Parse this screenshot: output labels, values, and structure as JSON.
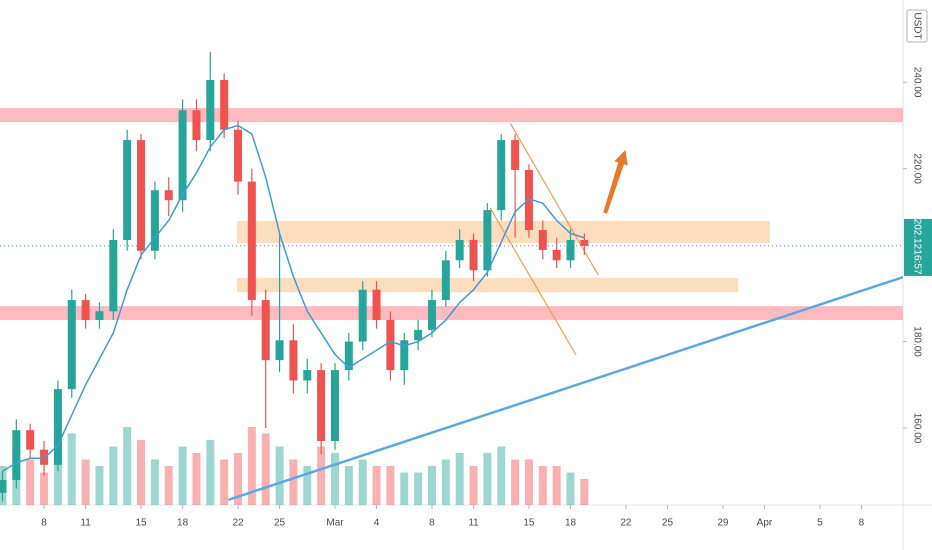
{
  "chart_data": {
    "type": "candlestick",
    "currency": "USDT",
    "last_price": 202.12,
    "time_label": "16:57",
    "up_color": "#26a69a",
    "down_color": "#ef5350",
    "ma_color": "#3d9be0",
    "xlim": [
      3.82,
      69.0
    ],
    "ylim": [
      142.2,
      259.0
    ],
    "vlim": [
      0,
      100
    ],
    "yticks": [
      {
        "value": 160,
        "label": "160.00"
      },
      {
        "value": 180,
        "label": "180.00"
      },
      {
        "value": 220,
        "label": "220.00"
      },
      {
        "value": 240,
        "label": "240.00"
      }
    ],
    "xticks": [
      {
        "value": 7,
        "label": "8"
      },
      {
        "value": 10,
        "label": "11"
      },
      {
        "value": 14,
        "label": "15"
      },
      {
        "value": 17,
        "label": "18"
      },
      {
        "value": 21,
        "label": "22"
      },
      {
        "value": 24,
        "label": "25"
      },
      {
        "value": 28,
        "label": "Mar"
      },
      {
        "value": 31,
        "label": "4"
      },
      {
        "value": 35,
        "label": "8"
      },
      {
        "value": 38,
        "label": "11"
      },
      {
        "value": 42,
        "label": "15"
      },
      {
        "value": 45,
        "label": "18"
      },
      {
        "value": 49,
        "label": "22"
      },
      {
        "value": 52,
        "label": "25"
      },
      {
        "value": 56,
        "label": "29"
      },
      {
        "value": 59,
        "label": "Apr"
      },
      {
        "value": 63,
        "label": "5"
      },
      {
        "value": 66,
        "label": "8"
      }
    ],
    "x": [
      4,
      5,
      6,
      7,
      8,
      9,
      10,
      11,
      12,
      13,
      14,
      15,
      16,
      17,
      18,
      19,
      20,
      21,
      22,
      23,
      24,
      25,
      26,
      27,
      28,
      29,
      30,
      31,
      32,
      33,
      34,
      35,
      36,
      37,
      38,
      39,
      40,
      41,
      42,
      43,
      44,
      45,
      46
    ],
    "open": [
      145,
      148,
      159.5,
      155,
      151.5,
      169,
      189.6,
      185,
      187,
      203.5,
      226.6,
      201,
      215,
      212.7,
      233.5,
      226.6,
      240.5,
      229,
      217,
      189.6,
      175.7,
      180.3,
      171,
      173.4,
      157,
      173.4,
      180,
      192,
      185,
      173.4,
      180.3,
      182.7,
      189.6,
      198.8,
      203.5,
      196.5,
      210.4,
      226.6,
      219.7,
      205.8,
      201.2,
      198.8,
      203.5
    ],
    "high": [
      150,
      162,
      161,
      157,
      171,
      192,
      191,
      189,
      206,
      229,
      228,
      217,
      218,
      236,
      236,
      247,
      242,
      231,
      220,
      192,
      205,
      184,
      176,
      175,
      175,
      182,
      194,
      194,
      187,
      182,
      185,
      192,
      201,
      206,
      205,
      212,
      228,
      228,
      221,
      208,
      204,
      206,
      205
    ],
    "low": [
      143,
      146,
      153,
      149,
      150,
      167,
      183,
      183,
      185,
      201,
      199,
      199,
      209,
      210,
      224,
      224,
      227,
      214,
      186,
      160,
      173,
      168,
      168,
      154,
      155,
      171,
      178,
      183,
      171,
      170,
      178,
      181,
      188,
      197,
      194,
      195,
      208,
      204,
      204,
      199,
      197,
      197,
      200
    ],
    "close": [
      148,
      159.5,
      155,
      151.5,
      169,
      189.6,
      185,
      187,
      203.5,
      226.6,
      201,
      215,
      212.7,
      233.5,
      226.6,
      240.5,
      229,
      217,
      189.6,
      175.7,
      180.3,
      171,
      173.4,
      157,
      173.4,
      180,
      192,
      185,
      173.4,
      180.3,
      182.7,
      189.6,
      198.8,
      203.5,
      196.5,
      210.4,
      226.6,
      219.7,
      205.8,
      201.2,
      198.8,
      203.5,
      202.12
    ],
    "ma": [
      150,
      152,
      153,
      153,
      156,
      163,
      170,
      176,
      182,
      192,
      200,
      204,
      208,
      214,
      219,
      225,
      229,
      230,
      228,
      218,
      205,
      195,
      187,
      182,
      177,
      174,
      176,
      178,
      180,
      179,
      180,
      182,
      185,
      189,
      192,
      196,
      203,
      210,
      213,
      212,
      208,
      205,
      204
    ],
    "volume": [
      30,
      45,
      35,
      25,
      40,
      55,
      35,
      30,
      45,
      60,
      50,
      35,
      30,
      45,
      40,
      50,
      35,
      40,
      60,
      55,
      45,
      35,
      30,
      45,
      40,
      30,
      35,
      30,
      30,
      25,
      25,
      30,
      35,
      40,
      30,
      40,
      45,
      35,
      35,
      30,
      30,
      25,
      20
    ],
    "zones": [
      {
        "color": "#ffb3b8",
        "x": [
          3.82,
          69.0
        ],
        "y": [
          230.75,
          234.0
        ]
      },
      {
        "color": "#ffb3b8",
        "x": [
          3.82,
          69.0
        ],
        "y": [
          185.0,
          188.2
        ]
      },
      {
        "color": "#fcd9b6",
        "x": [
          20.93,
          59.4
        ],
        "y": [
          202.8,
          207.9
        ]
      },
      {
        "color": "#fcd9b6",
        "x": [
          20.93,
          57.1
        ],
        "y": [
          191.4,
          194.7
        ]
      }
    ],
    "lines": [
      {
        "color": "#5aa9e6",
        "x": [
          20.3,
          69.0
        ],
        "y": [
          143.4,
          194.9
        ]
      },
      {
        "color": "#f59c51",
        "x": [
          40.65,
          47.0
        ],
        "y": [
          230.5,
          195.4
        ]
      },
      {
        "color": "#f59c51",
        "x": [
          39.2,
          45.4
        ],
        "y": [
          210.9,
          176.9
        ]
      }
    ],
    "arrow": {
      "color": "#e8782a",
      "x": [
        47.5,
        48.96
      ],
      "y": [
        209.7,
        224.3
      ]
    }
  }
}
